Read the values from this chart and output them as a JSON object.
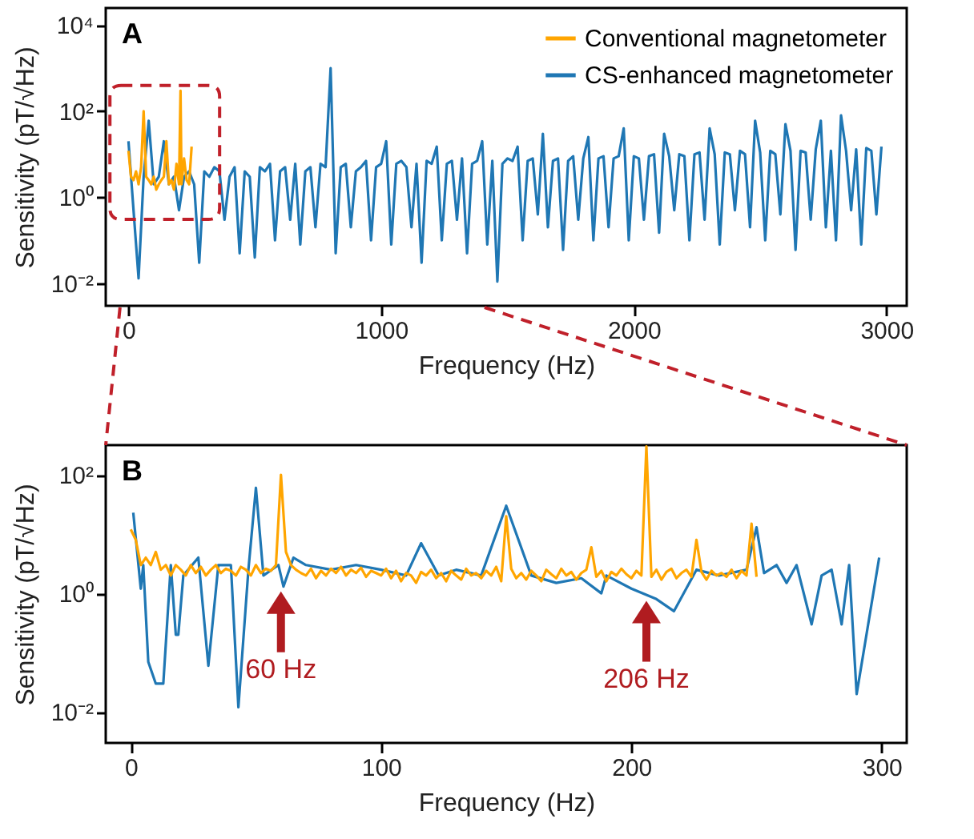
{
  "chart_data": [
    {
      "type": "line",
      "title": "A",
      "xlabel": "Frequency (Hz)",
      "ylabel": "Sensitivity (pT/√Hz)",
      "log": "y",
      "legend": "top right",
      "grid": false,
      "xlim": [
        -90,
        3080
      ],
      "xticks": [
        0,
        1000,
        2000,
        3000
      ],
      "ylim": [
        0.003,
        25000
      ],
      "yticks": [
        {
          "value": 10000,
          "label": "10⁴"
        },
        {
          "value": 100,
          "label": "10²"
        },
        {
          "value": 1,
          "label": "10⁰"
        },
        {
          "value": 0.01,
          "label": "10⁻²"
        }
      ],
      "series": [
        {
          "name": "Conventional magnetometer",
          "color": "#ffa500",
          "x": [
            0,
            10,
            20,
            30,
            40,
            50,
            60,
            70,
            80,
            90,
            100,
            110,
            120,
            130,
            140,
            150,
            160,
            170,
            180,
            190,
            200,
            206,
            210,
            220,
            230,
            240,
            250
          ],
          "values": [
            12,
            3,
            2.5,
            4,
            2,
            5,
            100,
            3,
            2.5,
            2,
            3,
            1.5,
            2,
            2.5,
            3,
            20,
            2,
            2.5,
            1.5,
            6,
            2,
            300,
            2,
            8,
            2.5,
            2,
            15
          ]
        },
        {
          "name": "CS-enhanced magnetometer",
          "color": "#1f77b4",
          "x": [
            0,
            20,
            40,
            60,
            80,
            100,
            120,
            140,
            160,
            180,
            200,
            220,
            240,
            260,
            280,
            300,
            320,
            340,
            360,
            380,
            400,
            420,
            440,
            460,
            480,
            500,
            520,
            540,
            560,
            580,
            600,
            620,
            640,
            660,
            680,
            700,
            720,
            740,
            760,
            780,
            800,
            820,
            840,
            860,
            880,
            900,
            920,
            940,
            960,
            980,
            1000,
            1020,
            1040,
            1060,
            1080,
            1100,
            1120,
            1140,
            1160,
            1180,
            1200,
            1220,
            1240,
            1260,
            1280,
            1300,
            1320,
            1340,
            1360,
            1380,
            1400,
            1420,
            1440,
            1460,
            1480,
            1500,
            1520,
            1540,
            1560,
            1580,
            1600,
            1620,
            1640,
            1660,
            1680,
            1700,
            1720,
            1740,
            1760,
            1780,
            1800,
            1820,
            1840,
            1860,
            1880,
            1900,
            1920,
            1940,
            1960,
            1980,
            2000,
            2020,
            2040,
            2060,
            2080,
            2100,
            2120,
            2140,
            2160,
            2180,
            2200,
            2220,
            2240,
            2260,
            2280,
            2300,
            2320,
            2340,
            2360,
            2380,
            2400,
            2420,
            2440,
            2460,
            2480,
            2500,
            2520,
            2540,
            2560,
            2580,
            2600,
            2620,
            2640,
            2660,
            2680,
            2700,
            2720,
            2740,
            2760,
            2780,
            2800,
            2820,
            2840,
            2860,
            2880,
            2900,
            2920,
            2940,
            2960,
            2980
          ],
          "values": [
            20,
            0.5,
            0.013,
            3,
            60,
            2,
            3,
            20,
            2,
            3,
            0.5,
            3,
            4,
            2,
            0.03,
            4,
            3,
            5,
            4,
            0.3,
            3,
            5,
            0.05,
            4,
            3,
            0.04,
            5,
            4,
            6,
            0.1,
            4,
            5,
            0.3,
            6,
            0.08,
            4,
            5,
            0.2,
            6,
            5,
            1000,
            0.05,
            5,
            6,
            0.2,
            4,
            5,
            7,
            0.1,
            5,
            6,
            20,
            0.08,
            6,
            7,
            5,
            0.2,
            6,
            0.03,
            7,
            6,
            15,
            0.1,
            6,
            7,
            0.3,
            8,
            0.05,
            6,
            7,
            20,
            0.08,
            7,
            0.011,
            6,
            8,
            7,
            15,
            0.1,
            7,
            8,
            0.4,
            30,
            0.2,
            7,
            8,
            0.06,
            7,
            9,
            0.3,
            8,
            25,
            0.1,
            8,
            9,
            0.2,
            8,
            9,
            40,
            0.1,
            9,
            8,
            0.3,
            9,
            10,
            0.15,
            30,
            9,
            0.5,
            10,
            9,
            0.1,
            10,
            11,
            0.3,
            40,
            10,
            0.08,
            11,
            10,
            0.5,
            12,
            10,
            0.2,
            60,
            11,
            0.1,
            12,
            10,
            0.4,
            50,
            12,
            0.06,
            12,
            11,
            0.3,
            13,
            60,
            0.2,
            12,
            0.1,
            80,
            12,
            0.5,
            13,
            0.08,
            14,
            12,
            0.4,
            15
          ]
        }
      ]
    },
    {
      "type": "line",
      "title": "B",
      "xlabel": "Frequency (Hz)",
      "ylabel": "Sensitivity (pT/√Hz)",
      "log": "y",
      "grid": false,
      "xlim": [
        -10,
        310
      ],
      "xticks": [
        0,
        100,
        200,
        300
      ],
      "ylim": [
        0.003,
        316
      ],
      "yticks": [
        {
          "value": 100,
          "label": "10²"
        },
        {
          "value": 1,
          "label": "10⁰"
        },
        {
          "value": 0.01,
          "label": "10⁻²"
        }
      ],
      "annotations": [
        {
          "text": "60 Hz",
          "x": 60,
          "y": 1.3
        },
        {
          "text": "206 Hz",
          "x": 206,
          "y": 0.9
        }
      ],
      "series": [
        {
          "color": "#ffa500",
          "x": [
            0,
            2,
            4,
            6,
            8,
            10,
            12,
            14,
            16,
            18,
            20,
            22,
            24,
            26,
            28,
            30,
            32,
            34,
            36,
            38,
            40,
            42,
            44,
            46,
            48,
            50,
            52,
            54,
            56,
            58,
            60,
            62,
            64,
            66,
            68,
            70,
            72,
            74,
            76,
            78,
            80,
            82,
            84,
            86,
            88,
            90,
            92,
            94,
            96,
            98,
            100,
            102,
            104,
            106,
            108,
            110,
            112,
            114,
            116,
            118,
            120,
            122,
            124,
            126,
            128,
            130,
            132,
            134,
            136,
            138,
            140,
            142,
            144,
            146,
            148,
            150,
            152,
            154,
            156,
            158,
            160,
            162,
            164,
            166,
            168,
            170,
            172,
            174,
            176,
            178,
            180,
            182,
            184,
            186,
            188,
            190,
            192,
            194,
            196,
            198,
            200,
            202,
            204,
            206,
            208,
            210,
            212,
            214,
            216,
            218,
            220,
            222,
            224,
            226,
            228,
            230,
            232,
            234,
            236,
            238,
            240,
            242,
            244,
            246,
            248,
            250
          ],
          "values": [
            12,
            8,
            3,
            4,
            3,
            5,
            2.5,
            3,
            2,
            3,
            2.5,
            2,
            3,
            2.2,
            2.8,
            2,
            2.5,
            3,
            2.2,
            2.6,
            2.4,
            2,
            2.8,
            2.5,
            2,
            3,
            2.2,
            2.6,
            2.4,
            3,
            100,
            5,
            3,
            2.5,
            2.2,
            2,
            2.6,
            1.8,
            2.4,
            2,
            2.6,
            2.2,
            2.8,
            2,
            2.5,
            2.2,
            2.7,
            1.9,
            2.4,
            2.2,
            2,
            2.6,
            1.8,
            2.4,
            1.6,
            2.2,
            2,
            1.5,
            2.3,
            2,
            2.5,
            1.8,
            2.2,
            1.6,
            2.4,
            2,
            1.7,
            2.6,
            2,
            2.2,
            1.8,
            2.4,
            2,
            2.8,
            1.6,
            20,
            2.6,
            1.8,
            2.2,
            1.7,
            2.4,
            2,
            1.6,
            2.5,
            2.1,
            1.8,
            2.6,
            2,
            2.3,
            1.7,
            2.2,
            2.5,
            6,
            1.9,
            2.4,
            1.6,
            2.3,
            2,
            2.6,
            2.1,
            1.8,
            2.4,
            2,
            300,
            1.9,
            2.5,
            1.7,
            2.3,
            2.6,
            1.8,
            2.2,
            2.5,
            1.9,
            8,
            2.3,
            1.7,
            2.4,
            2,
            2.2,
            1.9,
            2.5,
            1.8,
            2.4,
            2,
            15,
            1.9
          ]
        },
        {
          "color": "#1f77b4",
          "x": [
            1,
            4,
            5,
            7,
            10,
            13,
            16,
            18,
            19,
            21,
            27,
            31,
            35,
            40,
            43,
            47,
            50,
            53,
            59,
            61,
            65,
            70,
            80,
            90,
            100,
            110,
            116,
            123,
            130,
            140,
            150,
            160,
            170,
            180,
            188,
            190,
            200,
            210,
            217,
            226,
            235,
            246,
            250,
            253,
            258,
            262,
            266,
            272,
            276,
            280,
            284,
            287,
            290,
            299
          ],
          "values": [
            23,
            1.2,
            3,
            0.07,
            0.03,
            0.03,
            3,
            0.2,
            0.2,
            2,
            4,
            0.06,
            3,
            3,
            0.012,
            2.5,
            60,
            2,
            3,
            1.3,
            4,
            3,
            2.5,
            3,
            2.5,
            2,
            7,
            2,
            2.5,
            2,
            30,
            2,
            1.5,
            1.8,
            1,
            2,
            1.2,
            0.8,
            0.5,
            2.5,
            2,
            2.5,
            13,
            2.2,
            3,
            1.5,
            3,
            0.3,
            2,
            2.5,
            0.3,
            3,
            0.02,
            4
          ]
        }
      ]
    }
  ]
}
